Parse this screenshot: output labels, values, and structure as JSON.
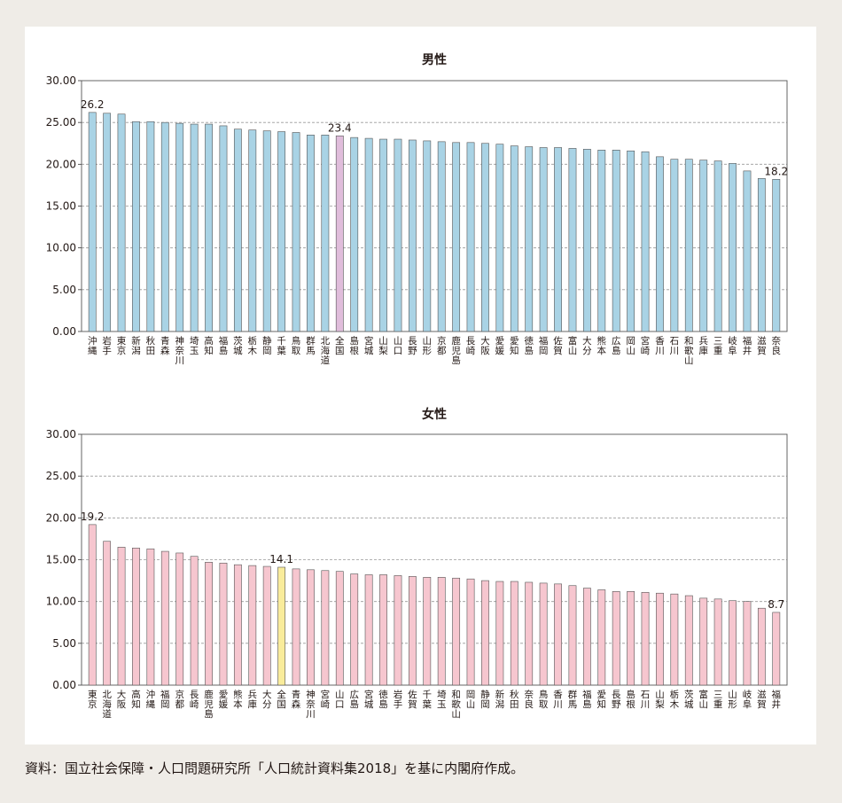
{
  "source_note": "資料：国立社会保障・人口問題研究所「人口統計資料集2018」を基に内閣府作成。",
  "colors": {
    "background": "#efece7",
    "panel": "#ffffff",
    "male_bar": "#a9d3e5",
    "male_highlight": "#e0bddb",
    "female_bar": "#f6c6cf",
    "female_highlight": "#f9ec9b",
    "bar_stroke": "#555555",
    "grid": "#999999"
  },
  "chart_data": [
    {
      "type": "bar",
      "title": "男性",
      "xlabel": "",
      "ylabel": "",
      "ylim": [
        0,
        30
      ],
      "yticks": [
        "0.00",
        "5.00",
        "10.00",
        "15.00",
        "20.00",
        "25.00",
        "30.00"
      ],
      "grid": true,
      "highlight": "全国",
      "categories": [
        "沖縄",
        "岩手",
        "東京",
        "新潟",
        "秋田",
        "青森",
        "神奈川",
        "埼玉",
        "高知",
        "福島",
        "茨城",
        "栃木",
        "静岡",
        "千葉",
        "鳥取",
        "群馬",
        "北海道",
        "全国",
        "島根",
        "宮城",
        "山梨",
        "山口",
        "長野",
        "山形",
        "京都",
        "鹿児島",
        "長崎",
        "大阪",
        "愛媛",
        "愛知",
        "徳島",
        "福岡",
        "佐賀",
        "富山",
        "大分",
        "熊本",
        "広島",
        "岡山",
        "宮崎",
        "香川",
        "石川",
        "和歌山",
        "兵庫",
        "三重",
        "岐阜",
        "福井",
        "滋賀",
        "奈良"
      ],
      "values": [
        26.2,
        26.1,
        26.0,
        25.1,
        25.1,
        25.0,
        24.9,
        24.8,
        24.8,
        24.6,
        24.2,
        24.1,
        24.0,
        23.9,
        23.8,
        23.5,
        23.5,
        23.4,
        23.2,
        23.1,
        23.0,
        23.0,
        22.9,
        22.8,
        22.7,
        22.6,
        22.6,
        22.5,
        22.4,
        22.2,
        22.1,
        22.0,
        22.0,
        21.9,
        21.8,
        21.7,
        21.7,
        21.6,
        21.5,
        20.9,
        20.6,
        20.6,
        20.5,
        20.4,
        20.1,
        19.2,
        18.3,
        18.2
      ],
      "data_labels": [
        {
          "category": "沖縄",
          "text": "26.2"
        },
        {
          "category": "全国",
          "text": "23.4"
        },
        {
          "category": "奈良",
          "text": "18.2"
        }
      ]
    },
    {
      "type": "bar",
      "title": "女性",
      "xlabel": "",
      "ylabel": "",
      "ylim": [
        0,
        30
      ],
      "yticks": [
        "0.00",
        "5.00",
        "10.00",
        "15.00",
        "20.00",
        "25.00",
        "30.00"
      ],
      "grid": true,
      "highlight": "全国",
      "categories": [
        "東京",
        "北海道",
        "大阪",
        "高知",
        "沖縄",
        "福岡",
        "京都",
        "長崎",
        "鹿児島",
        "愛媛",
        "熊本",
        "兵庫",
        "大分",
        "全国",
        "青森",
        "神奈川",
        "宮崎",
        "山口",
        "広島",
        "宮城",
        "徳島",
        "岩手",
        "佐賀",
        "千葉",
        "埼玉",
        "和歌山",
        "岡山",
        "静岡",
        "新潟",
        "秋田",
        "奈良",
        "鳥取",
        "香川",
        "群馬",
        "福島",
        "愛知",
        "長野",
        "島根",
        "石川",
        "山梨",
        "栃木",
        "茨城",
        "富山",
        "三重",
        "山形",
        "岐阜",
        "滋賀",
        "福井"
      ],
      "values": [
        19.2,
        17.2,
        16.5,
        16.4,
        16.3,
        16.0,
        15.8,
        15.4,
        14.7,
        14.6,
        14.4,
        14.3,
        14.2,
        14.1,
        13.9,
        13.8,
        13.7,
        13.6,
        13.3,
        13.2,
        13.2,
        13.1,
        13.0,
        12.9,
        12.9,
        12.8,
        12.7,
        12.5,
        12.4,
        12.4,
        12.3,
        12.2,
        12.1,
        11.9,
        11.6,
        11.4,
        11.2,
        11.2,
        11.1,
        11.0,
        10.9,
        10.7,
        10.4,
        10.3,
        10.1,
        10.0,
        9.2,
        8.7
      ],
      "data_labels": [
        {
          "category": "東京",
          "text": "19.2"
        },
        {
          "category": "全国",
          "text": "14.1"
        },
        {
          "category": "福井",
          "text": "8.7"
        }
      ]
    }
  ]
}
